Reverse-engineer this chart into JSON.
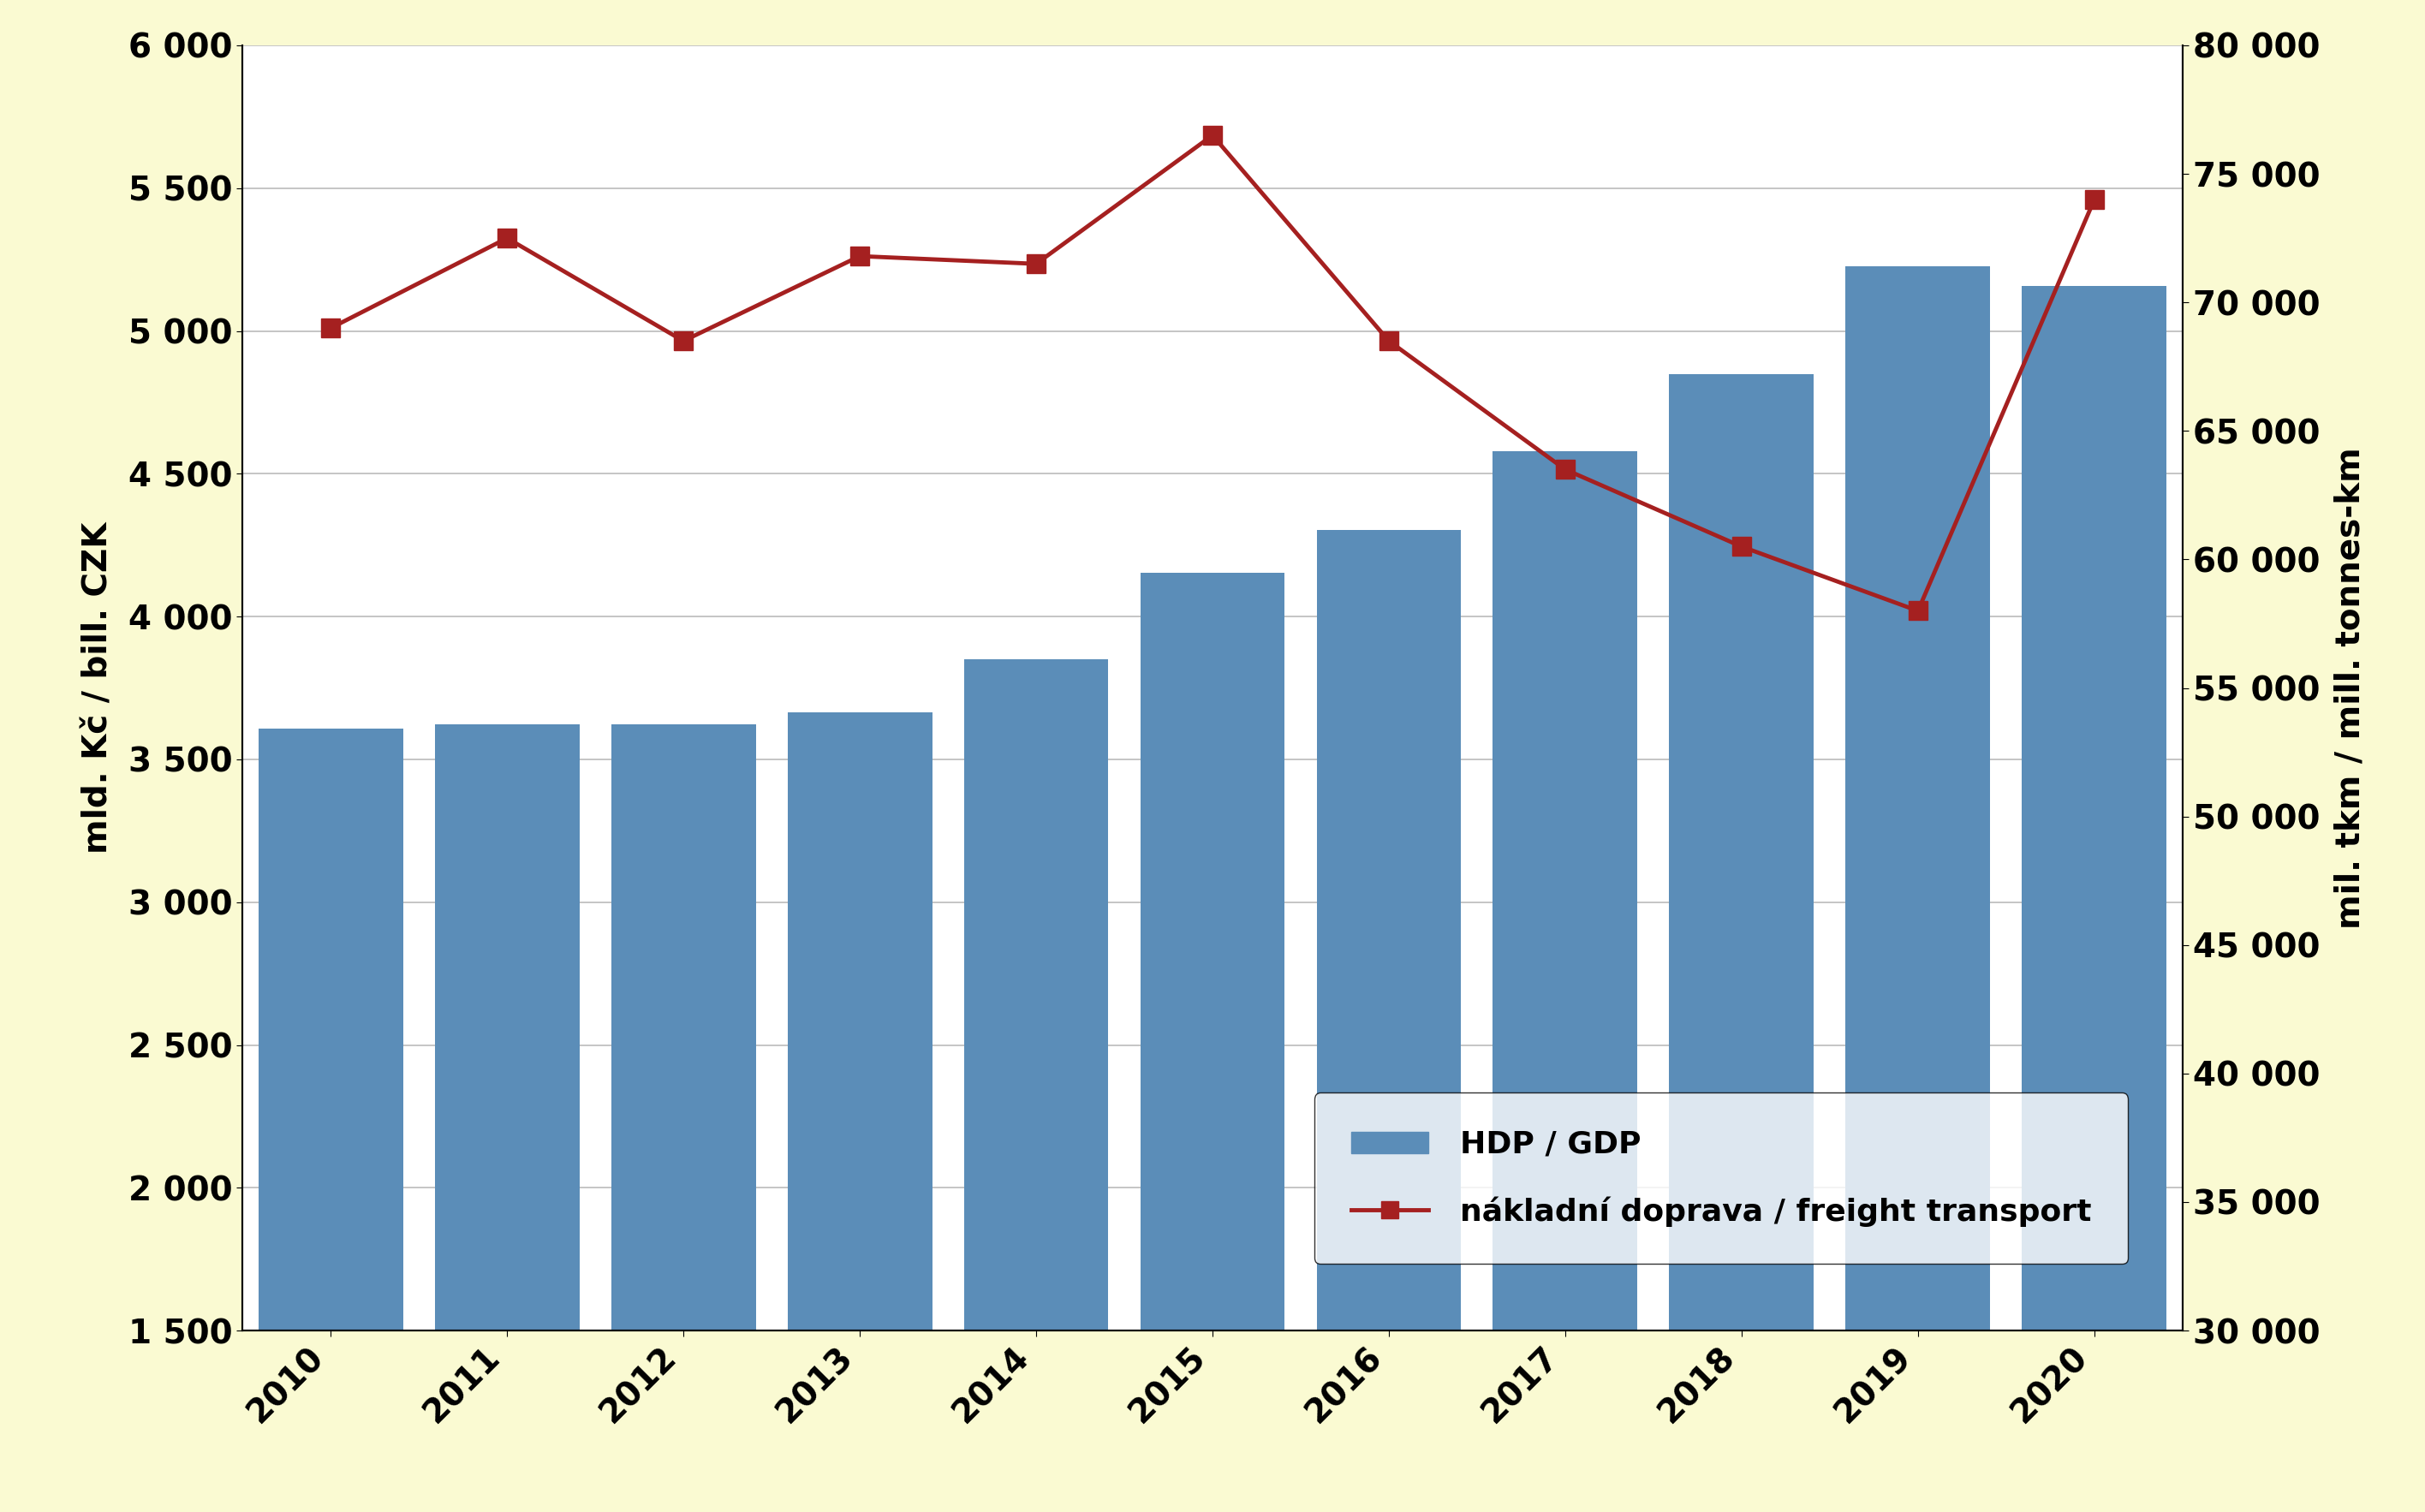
{
  "years": [
    2010,
    2011,
    2012,
    2013,
    2014,
    2015,
    2016,
    2017,
    2018,
    2019,
    2020
  ],
  "gdp_values": [
    3607,
    3624,
    3622,
    3665,
    3851,
    4153,
    4303,
    4578,
    4848,
    5228,
    5157
  ],
  "freight_values": [
    69000,
    72500,
    68500,
    71800,
    71500,
    76500,
    68500,
    63500,
    60500,
    58000,
    74000
  ],
  "bar_color": "#5B8DB8",
  "line_color": "#A52020",
  "marker_color": "#A52020",
  "background_color": "#FAFAD2",
  "plot_background": "#FFFFFF",
  "left_ylabel": "mld. Kč / bill. CZK",
  "right_ylabel": "mil. tkm / mill. tonnes-km",
  "ylim_left": [
    1500,
    6000
  ],
  "ylim_right": [
    30000,
    80000
  ],
  "yticks_left": [
    1500,
    2000,
    2500,
    3000,
    3500,
    4000,
    4500,
    5000,
    5500,
    6000
  ],
  "yticks_right": [
    30000,
    35000,
    40000,
    45000,
    50000,
    55000,
    60000,
    65000,
    70000,
    75000,
    80000
  ],
  "legend_labels": [
    "HDP / GDP",
    "nákladní doprava / freight transport"
  ],
  "grid_color": "#BBBBBB",
  "bar_bottom": 1500
}
